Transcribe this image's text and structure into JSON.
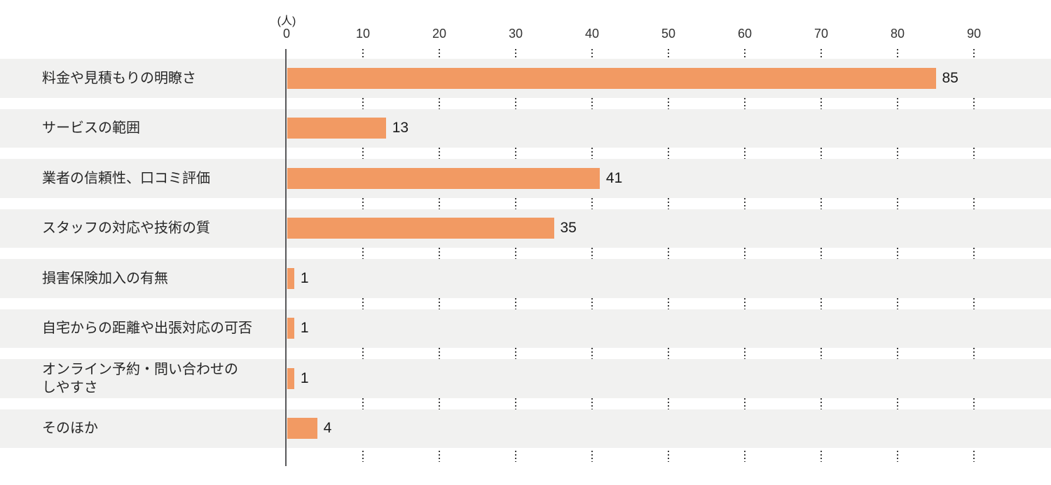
{
  "chart_data": {
    "type": "bar",
    "orientation": "horizontal",
    "title": "",
    "unit_label": "(人)",
    "categories": [
      "料金や見積もりの明瞭さ",
      "サービスの範囲",
      "業者の信頼性、口コミ評価",
      "スタッフの対応や技術の質",
      "損害保険加入の有無",
      "自宅からの距離や出張対応の可否",
      "オンライン予約・問い合わせの\nしやすさ",
      "そのほか"
    ],
    "values": [
      85,
      13,
      41,
      35,
      1,
      1,
      1,
      4
    ],
    "value_labels": [
      "85",
      "13",
      "41",
      "35",
      "1",
      "1",
      "1",
      "4"
    ],
    "xlim": [
      0,
      90
    ],
    "x_ticks": [
      0,
      10,
      20,
      30,
      40,
      50,
      60,
      70,
      80,
      90
    ],
    "grid": "dotted-vertical-ticks-between-rows",
    "legend": "none",
    "colors": {
      "bar": "#f29a63",
      "row_background": "#f1f1f0",
      "axis_line": "#59595b",
      "tick_dot": "#3f3f3f",
      "text": "#262626"
    }
  }
}
